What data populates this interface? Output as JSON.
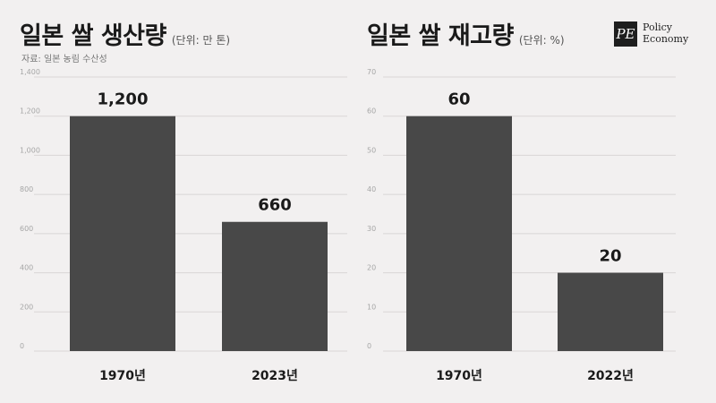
{
  "logo": {
    "mark": "PE",
    "line1": "Policy",
    "line2": "Economy"
  },
  "left": {
    "title": "일본 쌀 생산량",
    "unit": "(단위: 만 톤)",
    "source": "자료: 일본 농림 수산성"
  },
  "right": {
    "title": "일본 쌀 재고량",
    "unit": "(단위: %)"
  },
  "colors": {
    "bar": "#484848",
    "grid": "#d9d6d6",
    "tick": "#a6a6a6",
    "background": "#f2f0f0"
  },
  "chart_data": [
    {
      "type": "bar",
      "title": "일본 쌀 생산량",
      "ylabel": "(단위: 만 톤)",
      "categories": [
        "1970년",
        "2023년"
      ],
      "values": [
        1200,
        660
      ],
      "value_labels": [
        "1,200",
        "660"
      ],
      "ylim": [
        0,
        1400
      ],
      "yticks": [
        0,
        200,
        400,
        600,
        800,
        1000,
        1200,
        1400
      ],
      "ytick_labels": [
        "0",
        "200",
        "400",
        "600",
        "800",
        "1,000",
        "1,200",
        "1,400"
      ],
      "grid": true
    },
    {
      "type": "bar",
      "title": "일본 쌀 재고량",
      "ylabel": "(단위: %)",
      "categories": [
        "1970년",
        "2022년"
      ],
      "values": [
        60,
        20
      ],
      "value_labels": [
        "60",
        "20"
      ],
      "ylim": [
        0,
        70
      ],
      "yticks": [
        0,
        10,
        20,
        30,
        40,
        50,
        60,
        70
      ],
      "ytick_labels": [
        "0",
        "10",
        "20",
        "30",
        "40",
        "50",
        "60",
        "70"
      ],
      "grid": true
    }
  ]
}
